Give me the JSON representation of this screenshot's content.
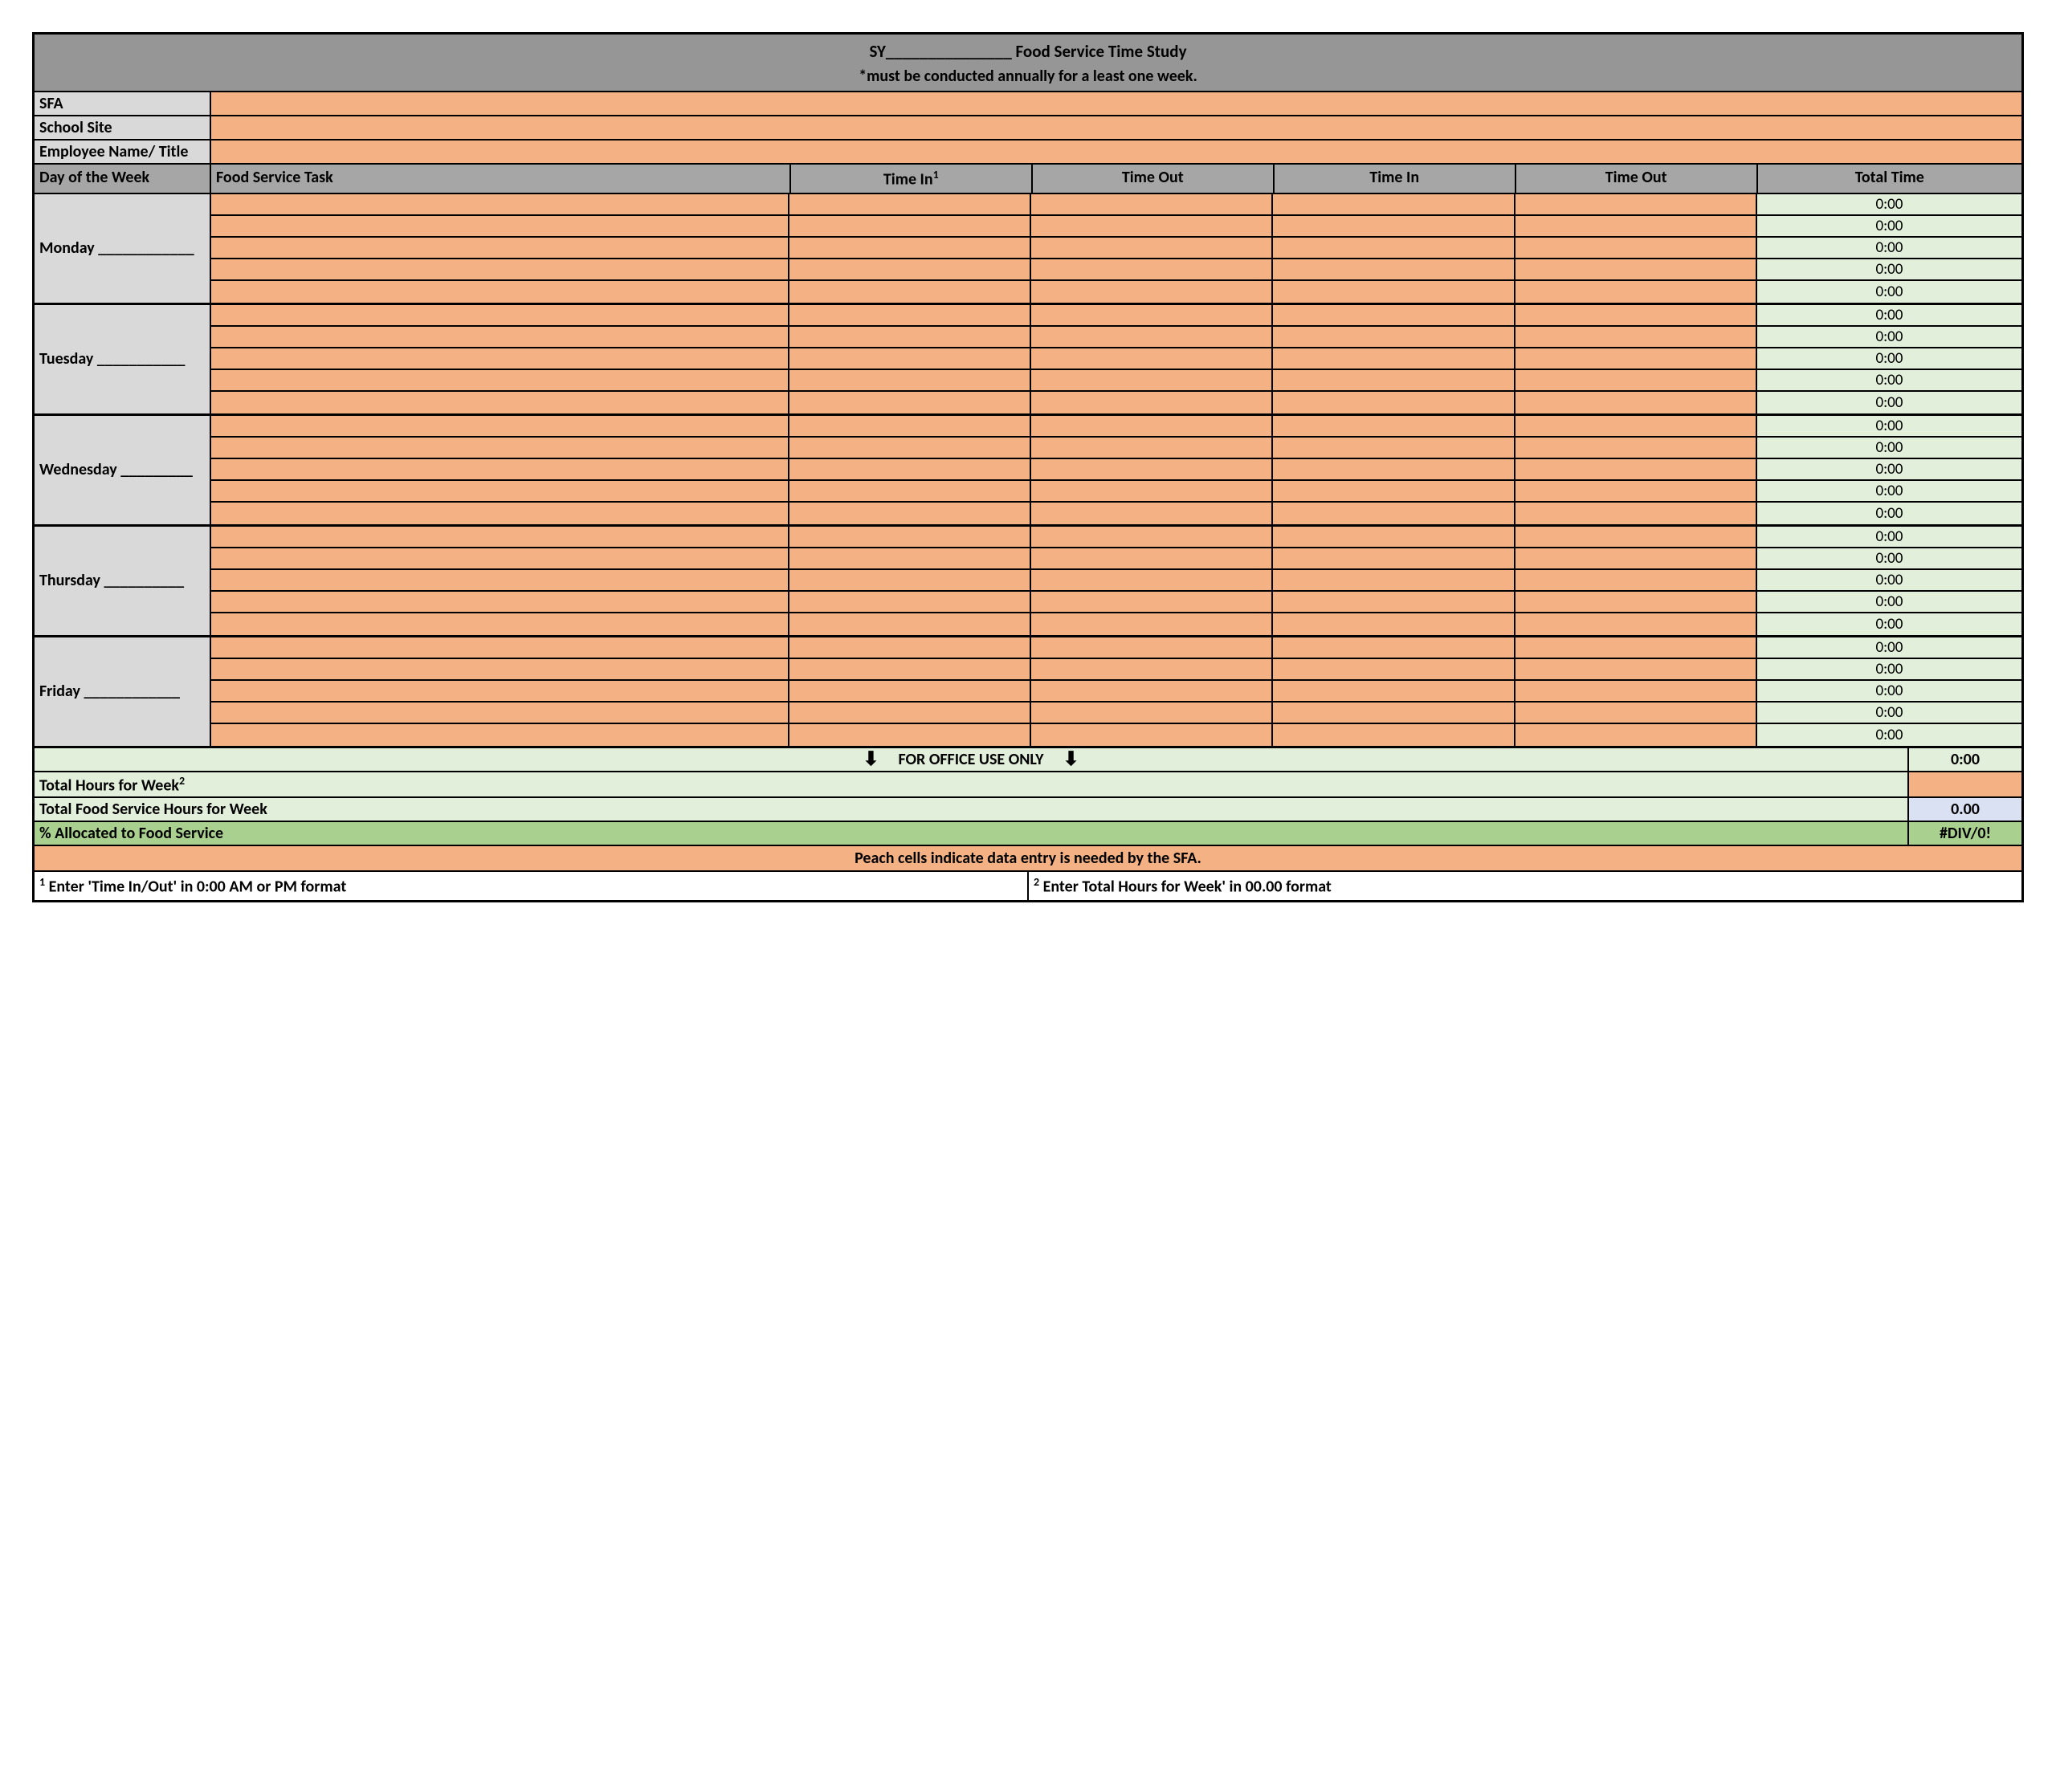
{
  "colors": {
    "header_gray": "#969696",
    "label_gray": "#d9d9d9",
    "col_header_gray": "#a6a6a6",
    "peach": "#f4b183",
    "light_green": "#e2efda",
    "mid_green": "#a9d08e",
    "light_blue": "#d9e1f2",
    "border": "#000000"
  },
  "title": {
    "line1_prefix": "SY",
    "line1_blank": "_______________",
    "line1_suffix": " Food Service Time Study",
    "line2": "*must be conducted annually for a least one week."
  },
  "info_rows": [
    "SFA",
    "School Site",
    "Employee Name/ Title"
  ],
  "columns": {
    "day": "Day of the Week",
    "task": "Food Service Task",
    "time_in1": "Time In",
    "time_in1_sup": "1",
    "time_out1": "Time Out",
    "time_in2": "Time In",
    "time_out2": "Time Out",
    "total": "Total Time"
  },
  "days": [
    {
      "name": "Monday",
      "blank": " ____________",
      "rows": 5,
      "total_default": "0:00"
    },
    {
      "name": "Tuesday",
      "blank": " ___________",
      "rows": 5,
      "total_default": "0:00"
    },
    {
      "name": "Wednesday",
      "blank": " _________",
      "rows": 5,
      "total_default": "0:00"
    },
    {
      "name": "Thursday",
      "blank": " __________",
      "rows": 5,
      "total_default": "0:00"
    },
    {
      "name": "Friday",
      "blank": " ____________",
      "rows": 5,
      "total_default": "0:00"
    }
  ],
  "office_use": {
    "label": "FOR OFFICE USE ONLY",
    "total": "0:00"
  },
  "summary": {
    "total_hours_label": "Total Hours for Week",
    "total_hours_sup": "2",
    "total_hours_value": "",
    "total_fs_label": "Total Food Service Hours for Week",
    "total_fs_value": "0.00",
    "pct_label": "% Allocated to Food Service",
    "pct_value": "#DIV/0!"
  },
  "note": "Peach cells indicate data entry is needed by the SFA.",
  "footnotes": {
    "f1_sup": "1",
    "f1": " Enter 'Time In/Out' in 0:00 AM or PM format",
    "f2_sup": "2",
    "f2": " Enter Total Hours for Week' in 00.00 format"
  }
}
